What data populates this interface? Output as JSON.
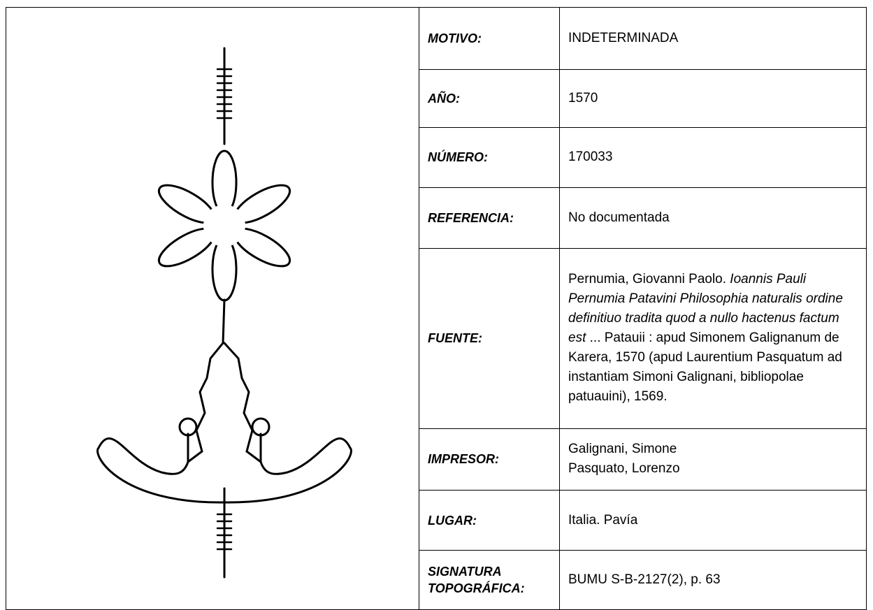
{
  "record": {
    "rows": [
      {
        "label": "MOTIVO:",
        "value": "INDETERMINADA"
      },
      {
        "label": "AÑO:",
        "value": "1570"
      },
      {
        "label": "NÚMERO:",
        "value": "170033"
      },
      {
        "label": "REFERENCIA:",
        "value": "No documentada"
      },
      {
        "label": "FUENTE:",
        "value_parts": [
          "Pernumia, Giovanni Paolo. ",
          "Ioannis Pauli Pernumia Patavini Philosophia naturalis ordine definitiuo tradita quod a nullo hactenus factum est",
          " ... Patauii : apud Simonem Galignanum de Karera, 1570 (apud Laurentium Pasquatum ad instantiam Simoni Galignani, bibliopolae patuauini), 1569."
        ]
      },
      {
        "label": "IMPRESOR:",
        "value_lines": [
          "Galignani, Simone",
          "Pasquato, Lorenzo"
        ]
      },
      {
        "label": "LUGAR:",
        "value": "Italia. Pavía"
      },
      {
        "label": "SIGNATURA TOPOGRÁFICA:",
        "value": "BUMU S-B-2127(2), p. 63"
      }
    ]
  }
}
